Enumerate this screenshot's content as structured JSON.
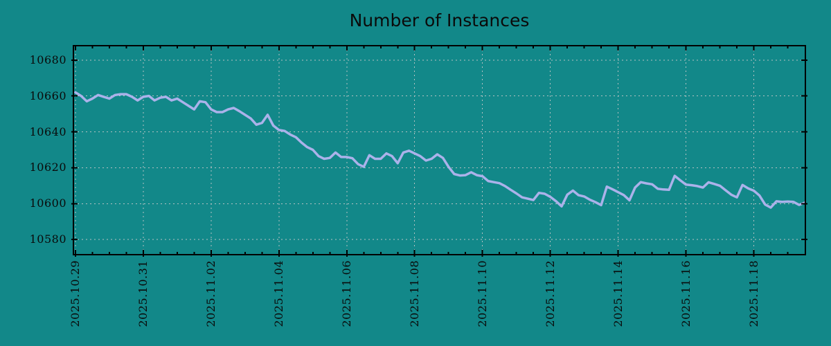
{
  "title": "Number of Instances",
  "colors": {
    "background": "#128889",
    "line": "#abb2ea",
    "grid": "#b5c2c2",
    "axis": "#000000",
    "text": "#0a0a0a"
  },
  "chart_data": {
    "type": "line",
    "title": "Number of Instances",
    "xlabel": "",
    "ylabel": "",
    "grid": "dotted",
    "legend": "none",
    "x_axis": {
      "tick_labels": [
        "2025.10.29",
        "2025.10.31",
        "2025.11.02",
        "2025.11.04",
        "2025.11.06",
        "2025.11.08",
        "2025.11.10",
        "2025.11.12",
        "2025.11.14",
        "2025.11.16",
        "2025.11.18"
      ],
      "tick_days": [
        0,
        2,
        4,
        6,
        8,
        10,
        12,
        14,
        16,
        18,
        20
      ],
      "minor_tick_step_days": 0.5,
      "lim_days": [
        -0.06,
        21.52
      ]
    },
    "y_axis": {
      "ticks": [
        10580,
        10600,
        10620,
        10640,
        10660,
        10680
      ],
      "lim": [
        10571.6,
        10688.0
      ]
    },
    "series": [
      {
        "name": "Number of Instances",
        "color": "#abb2ea",
        "x_start_day": 0,
        "x_step_days": 0.166667,
        "values": [
          10662,
          10660,
          10657,
          10658.5,
          10660.5,
          10659.5,
          10658.5,
          10660.5,
          10661,
          10661,
          10659.5,
          10657.5,
          10659.5,
          10660,
          10657.5,
          10659,
          10659.5,
          10657.5,
          10658.5,
          10656.5,
          10654.5,
          10652.5,
          10657,
          10656.5,
          10652.5,
          10651,
          10651,
          10652.5,
          10653.3,
          10651.5,
          10649.5,
          10647.5,
          10644,
          10645,
          10649.5,
          10643.5,
          10641,
          10640.5,
          10638.5,
          10637,
          10634,
          10631.5,
          10630,
          10626.5,
          10625,
          10625.5,
          10628.5,
          10626,
          10626,
          10625.3,
          10622,
          10620.5,
          10627,
          10625,
          10625,
          10628,
          10626.5,
          10622.5,
          10628.5,
          10629.5,
          10628,
          10626.5,
          10624,
          10625,
          10627.5,
          10625.5,
          10620.5,
          10616.5,
          10615.7,
          10615.9,
          10617.5,
          10615.9,
          10615.3,
          10612.6,
          10612,
          10611.4,
          10609.8,
          10607.7,
          10605.7,
          10603.5,
          10602.8,
          10602,
          10606,
          10605.5,
          10603.8,
          10601.4,
          10598.5,
          10605,
          10607.3,
          10604.7,
          10604,
          10602.2,
          10600.8,
          10599.2,
          10609.5,
          10608,
          10606.4,
          10604.8,
          10601.9,
          10609,
          10612,
          10611.3,
          10610.8,
          10608.3,
          10607.9,
          10607.7,
          10615.5,
          10613,
          10610.6,
          10610.3,
          10609.8,
          10609,
          10611.9,
          10611,
          10610,
          10607.5,
          10605,
          10603.5,
          10610.4,
          10608.5,
          10607.2,
          10604.5,
          10599.5,
          10597.8,
          10601.3,
          10601,
          10601.2,
          10601,
          10599.3,
          10600.5
        ]
      }
    ]
  }
}
